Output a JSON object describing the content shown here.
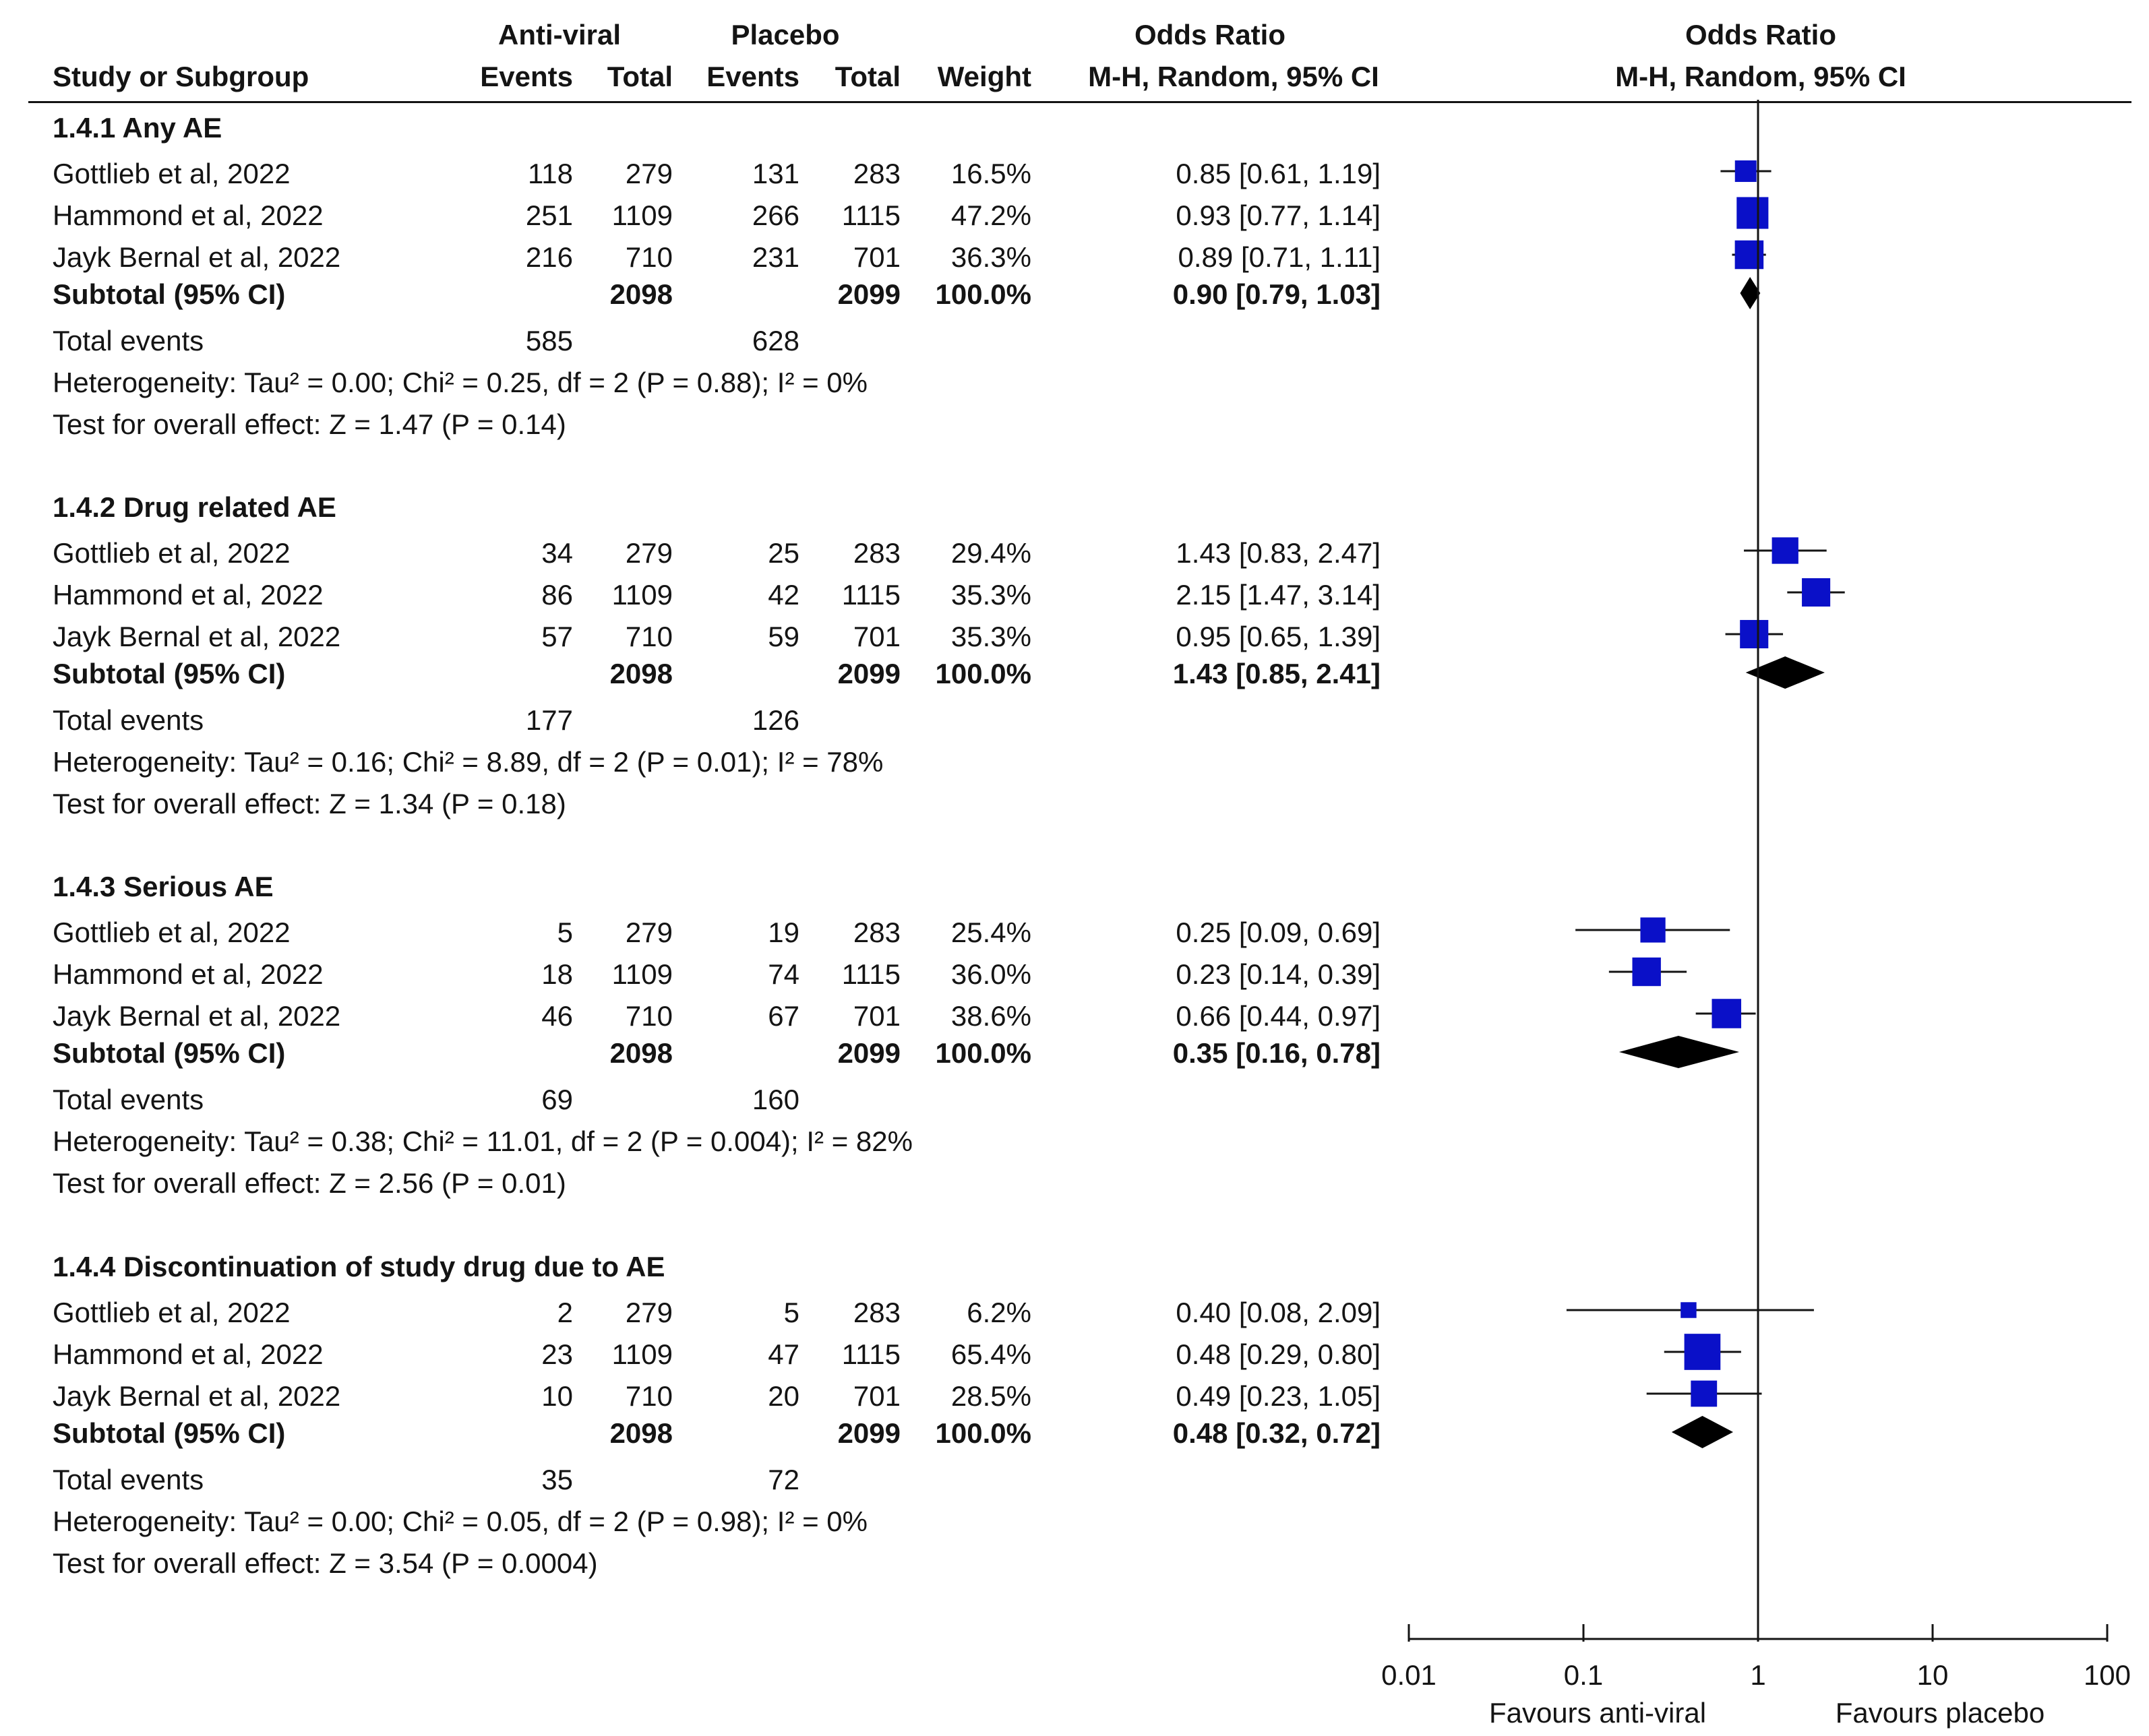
{
  "chart_data": {
    "type": "forest",
    "headers": {
      "group_antiviral": "Anti-viral",
      "group_placebo": "Placebo",
      "group_or": "Odds Ratio",
      "group_or_plot": "Odds Ratio",
      "study": "Study or Subgroup",
      "events_a": "Events",
      "total_a": "Total",
      "events_p": "Events",
      "total_p": "Total",
      "weight": "Weight",
      "method": "M-H, Random, 95% CI",
      "method_plot": "M-H, Random, 95% CI"
    },
    "subgroups": [
      {
        "title": "1.4.1 Any AE",
        "studies": [
          {
            "name": "Gottlieb et al, 2022",
            "events_a": "118",
            "total_a": "279",
            "events_p": "131",
            "total_p": "283",
            "weight": "16.5%",
            "ci_text": "0.85 [0.61, 1.19]",
            "or": 0.85,
            "lo": 0.61,
            "hi": 1.19,
            "w": 16.5
          },
          {
            "name": "Hammond et al, 2022",
            "events_a": "251",
            "total_a": "1109",
            "events_p": "266",
            "total_p": "1115",
            "weight": "47.2%",
            "ci_text": "0.93 [0.77, 1.14]",
            "or": 0.93,
            "lo": 0.77,
            "hi": 1.14,
            "w": 47.2
          },
          {
            "name": "Jayk Bernal et al, 2022",
            "events_a": "216",
            "total_a": "710",
            "events_p": "231",
            "total_p": "701",
            "weight": "36.3%",
            "ci_text": "0.89 [0.71, 1.11]",
            "or": 0.89,
            "lo": 0.71,
            "hi": 1.11,
            "w": 36.3
          }
        ],
        "subtotal": {
          "label": "Subtotal (95% CI)",
          "total_a": "2098",
          "total_p": "2099",
          "weight": "100.0%",
          "ci_text": "0.90 [0.79, 1.03]",
          "or": 0.9,
          "lo": 0.79,
          "hi": 1.03
        },
        "total_events": {
          "label": "Total events",
          "a": "585",
          "p": "628"
        },
        "heterogeneity": "Heterogeneity: Tau² = 0.00; Chi² = 0.25, df = 2 (P = 0.88); I² = 0%",
        "overall": "Test for overall effect: Z = 1.47 (P = 0.14)"
      },
      {
        "title": "1.4.2 Drug related AE",
        "studies": [
          {
            "name": "Gottlieb et al, 2022",
            "events_a": "34",
            "total_a": "279",
            "events_p": "25",
            "total_p": "283",
            "weight": "29.4%",
            "ci_text": "1.43 [0.83, 2.47]",
            "or": 1.43,
            "lo": 0.83,
            "hi": 2.47,
            "w": 29.4
          },
          {
            "name": "Hammond et al, 2022",
            "events_a": "86",
            "total_a": "1109",
            "events_p": "42",
            "total_p": "1115",
            "weight": "35.3%",
            "ci_text": "2.15 [1.47, 3.14]",
            "or": 2.15,
            "lo": 1.47,
            "hi": 3.14,
            "w": 35.3
          },
          {
            "name": "Jayk Bernal et al, 2022",
            "events_a": "57",
            "total_a": "710",
            "events_p": "59",
            "total_p": "701",
            "weight": "35.3%",
            "ci_text": "0.95 [0.65, 1.39]",
            "or": 0.95,
            "lo": 0.65,
            "hi": 1.39,
            "w": 35.3
          }
        ],
        "subtotal": {
          "label": "Subtotal (95% CI)",
          "total_a": "2098",
          "total_p": "2099",
          "weight": "100.0%",
          "ci_text": "1.43 [0.85, 2.41]",
          "or": 1.43,
          "lo": 0.85,
          "hi": 2.41
        },
        "total_events": {
          "label": "Total events",
          "a": "177",
          "p": "126"
        },
        "heterogeneity": "Heterogeneity: Tau² = 0.16; Chi² = 8.89, df = 2 (P = 0.01); I² = 78%",
        "overall": "Test for overall effect: Z = 1.34 (P = 0.18)"
      },
      {
        "title": "1.4.3 Serious AE",
        "studies": [
          {
            "name": "Gottlieb et al, 2022",
            "events_a": "5",
            "total_a": "279",
            "events_p": "19",
            "total_p": "283",
            "weight": "25.4%",
            "ci_text": "0.25 [0.09, 0.69]",
            "or": 0.25,
            "lo": 0.09,
            "hi": 0.69,
            "w": 25.4
          },
          {
            "name": "Hammond et al, 2022",
            "events_a": "18",
            "total_a": "1109",
            "events_p": "74",
            "total_p": "1115",
            "weight": "36.0%",
            "ci_text": "0.23 [0.14, 0.39]",
            "or": 0.23,
            "lo": 0.14,
            "hi": 0.39,
            "w": 36.0
          },
          {
            "name": "Jayk Bernal et al, 2022",
            "events_a": "46",
            "total_a": "710",
            "events_p": "67",
            "total_p": "701",
            "weight": "38.6%",
            "ci_text": "0.66 [0.44, 0.97]",
            "or": 0.66,
            "lo": 0.44,
            "hi": 0.97,
            "w": 38.6
          }
        ],
        "subtotal": {
          "label": "Subtotal (95% CI)",
          "total_a": "2098",
          "total_p": "2099",
          "weight": "100.0%",
          "ci_text": "0.35 [0.16, 0.78]",
          "or": 0.35,
          "lo": 0.16,
          "hi": 0.78
        },
        "total_events": {
          "label": "Total events",
          "a": "69",
          "p": "160"
        },
        "heterogeneity": "Heterogeneity: Tau² = 0.38; Chi² = 11.01, df = 2 (P = 0.004); I² = 82%",
        "overall": "Test for overall effect: Z = 2.56 (P = 0.01)"
      },
      {
        "title": "1.4.4 Discontinuation of study drug due to AE",
        "studies": [
          {
            "name": "Gottlieb et al, 2022",
            "events_a": "2",
            "total_a": "279",
            "events_p": "5",
            "total_p": "283",
            "weight": "6.2%",
            "ci_text": "0.40 [0.08, 2.09]",
            "or": 0.4,
            "lo": 0.08,
            "hi": 2.09,
            "w": 6.2
          },
          {
            "name": "Hammond et al, 2022",
            "events_a": "23",
            "total_a": "1109",
            "events_p": "47",
            "total_p": "1115",
            "weight": "65.4%",
            "ci_text": "0.48 [0.29, 0.80]",
            "or": 0.48,
            "lo": 0.29,
            "hi": 0.8,
            "w": 65.4
          },
          {
            "name": "Jayk Bernal et al, 2022",
            "events_a": "10",
            "total_a": "710",
            "events_p": "20",
            "total_p": "701",
            "weight": "28.5%",
            "ci_text": "0.49 [0.23, 1.05]",
            "or": 0.49,
            "lo": 0.23,
            "hi": 1.05,
            "w": 28.5
          }
        ],
        "subtotal": {
          "label": "Subtotal (95% CI)",
          "total_a": "2098",
          "total_p": "2099",
          "weight": "100.0%",
          "ci_text": "0.48 [0.32, 0.72]",
          "or": 0.48,
          "lo": 0.32,
          "hi": 0.72
        },
        "total_events": {
          "label": "Total events",
          "a": "35",
          "p": "72"
        },
        "heterogeneity": "Heterogeneity: Tau² = 0.00; Chi² = 0.05, df = 2 (P = 0.98); I² = 0%",
        "overall": "Test for overall effect: Z = 3.54 (P = 0.0004)"
      }
    ],
    "x_axis": {
      "scale": "log",
      "range": [
        0.01,
        100
      ],
      "ticks": [
        0.01,
        0.1,
        1,
        10,
        100
      ],
      "tick_labels": [
        "0.01",
        "0.1",
        "1",
        "10",
        "100"
      ],
      "reference_line": 1,
      "label_left": "Favours anti-viral",
      "label_right": "Favours placebo"
    },
    "colors": {
      "study_marker": "#0a10c8",
      "summary_marker": "#000000",
      "line": "#141414"
    }
  }
}
